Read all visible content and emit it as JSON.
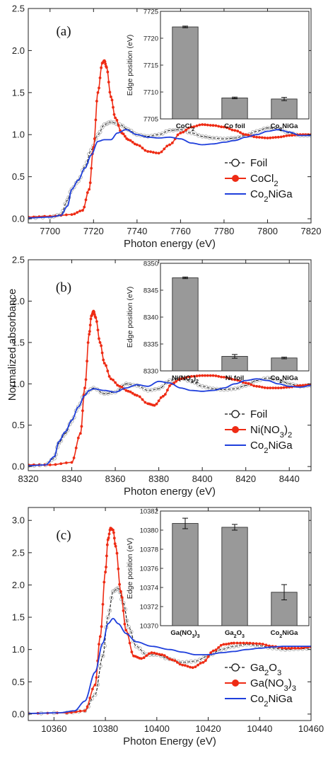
{
  "shared": {
    "ylabel": "Normalized absorbance",
    "colors": {
      "foil": "#111111",
      "foil_markers": "#aaaaaa",
      "reference": "#ee2b14",
      "sample": "#1f3fdc",
      "bar": "#999999"
    }
  },
  "chart_data": [
    {
      "type": "line",
      "panel_label": "(a)",
      "xlabel": "Photon energy (eV)",
      "xlim": [
        7690,
        7820
      ],
      "ylim": [
        -0.05,
        2.5
      ],
      "xticks": [
        "7700",
        "7720",
        "7740",
        "7760",
        "7780",
        "7800",
        "7820"
      ],
      "yticks": [
        "0.0",
        "0.5",
        "1.0",
        "1.5",
        "2.0",
        "2.5"
      ],
      "series": [
        {
          "name": "Foil",
          "style": "open-circle",
          "x": [
            7690,
            7700,
            7705,
            7708,
            7710,
            7713,
            7716,
            7719,
            7722,
            7725,
            7728,
            7732,
            7736,
            7740,
            7745,
            7750,
            7755,
            7760,
            7765,
            7770,
            7775,
            7780,
            7785,
            7790,
            7795,
            7800,
            7805,
            7810,
            7815,
            7820
          ],
          "y": [
            0.01,
            0.02,
            0.05,
            0.22,
            0.35,
            0.45,
            0.62,
            0.82,
            1.0,
            1.12,
            1.15,
            1.12,
            1.06,
            1.0,
            0.98,
            1.0,
            1.05,
            1.06,
            1.02,
            0.98,
            0.96,
            0.95,
            0.96,
            0.99,
            1.04,
            1.08,
            1.07,
            1.02,
            0.99,
            0.99
          ]
        },
        {
          "name": "CoCl2",
          "label_base": "CoCl",
          "label_sub": "2",
          "style": "filled-circle",
          "x": [
            7690,
            7700,
            7710,
            7715,
            7718,
            7720,
            7722,
            7724,
            7725,
            7726,
            7728,
            7730,
            7733,
            7736,
            7740,
            7745,
            7750,
            7755,
            7760,
            7765,
            7770,
            7775,
            7780,
            7785,
            7790,
            7795,
            7800,
            7805,
            7810,
            7815,
            7820
          ],
          "y": [
            0.02,
            0.03,
            0.05,
            0.1,
            0.35,
            0.85,
            1.5,
            1.85,
            1.88,
            1.8,
            1.45,
            1.2,
            1.02,
            0.94,
            0.88,
            0.8,
            0.78,
            0.88,
            1.02,
            1.09,
            1.12,
            1.11,
            1.09,
            1.05,
            1.0,
            0.97,
            0.96,
            0.97,
            0.99,
            1.0,
            1.0
          ]
        },
        {
          "name": "Co2NiGa",
          "label_base": "Co",
          "label_sub": "2",
          "label_rest": "NiGa",
          "style": "line",
          "x": [
            7690,
            7700,
            7705,
            7708,
            7710,
            7713,
            7716,
            7719,
            7722,
            7725,
            7728,
            7731,
            7735,
            7740,
            7745,
            7750,
            7755,
            7760,
            7765,
            7770,
            7775,
            7780,
            7785,
            7790,
            7795,
            7800,
            7805,
            7810,
            7815,
            7820
          ],
          "y": [
            0.01,
            0.02,
            0.04,
            0.15,
            0.35,
            0.46,
            0.6,
            0.76,
            0.92,
            0.94,
            0.94,
            1.02,
            1.06,
            1.0,
            0.97,
            0.96,
            0.97,
            0.95,
            0.9,
            0.88,
            0.89,
            0.91,
            0.93,
            0.97,
            1.0,
            1.04,
            1.06,
            1.03,
            0.99,
            0.99
          ]
        }
      ],
      "legend": {
        "position": "lower-right",
        "entries": [
          "Foil",
          "CoCl2",
          "Co2NiGa"
        ]
      },
      "inset": {
        "type": "bar",
        "ylabel": "Edge position (eV)",
        "ylim": [
          7705,
          7725
        ],
        "yticks": [
          "7705",
          "7710",
          "7715",
          "7720",
          "7725"
        ],
        "categories": [
          {
            "base": "CoCl",
            "sub": "2",
            "rest": ""
          },
          {
            "base": "Co foil",
            "sub": "",
            "rest": ""
          },
          {
            "base": "Co",
            "sub": "2",
            "rest": "NiGa"
          }
        ],
        "values": [
          7722.1,
          7708.9,
          7708.7
        ],
        "errors": [
          0.15,
          0.15,
          0.3
        ]
      }
    },
    {
      "type": "line",
      "panel_label": "(b)",
      "xlabel": "Photon energy (eV)",
      "xlim": [
        8320,
        8450
      ],
      "ylim": [
        -0.05,
        2.5
      ],
      "xticks": [
        "8320",
        "8340",
        "8360",
        "8380",
        "8400",
        "8420",
        "8440"
      ],
      "yticks": [
        "0.0",
        "0.5",
        "1.0",
        "1.5",
        "2.0",
        "2.5"
      ],
      "series": [
        {
          "name": "Foil",
          "style": "open-circle",
          "x": [
            8320,
            8328,
            8332,
            8334,
            8337,
            8340,
            8343,
            8346,
            8350,
            8355,
            8360,
            8365,
            8370,
            8375,
            8380,
            8385,
            8390,
            8395,
            8400,
            8405,
            8410,
            8415,
            8420,
            8425,
            8430,
            8435,
            8440,
            8445,
            8450
          ],
          "y": [
            0.01,
            0.02,
            0.1,
            0.28,
            0.4,
            0.55,
            0.72,
            0.88,
            0.95,
            0.88,
            0.9,
            1.0,
            0.98,
            0.92,
            0.94,
            1.04,
            1.07,
            1.03,
            0.97,
            0.94,
            0.93,
            0.94,
            0.98,
            1.04,
            1.07,
            1.05,
            1.0,
            0.97,
            0.98
          ]
        },
        {
          "name": "Ni(NO3)2",
          "label_base": "Ni(NO",
          "label_sub": "3",
          "label_rest": ")",
          "label_sub2": "2",
          "style": "filled-circle",
          "x": [
            8320,
            8330,
            8340,
            8344,
            8346,
            8348,
            8349,
            8350,
            8351,
            8353,
            8355,
            8358,
            8362,
            8366,
            8370,
            8375,
            8378,
            8382,
            8386,
            8390,
            8395,
            8400,
            8405,
            8410,
            8415,
            8420,
            8425,
            8430,
            8435,
            8440,
            8445,
            8450
          ],
          "y": [
            0.02,
            0.02,
            0.05,
            0.4,
            0.95,
            1.6,
            1.82,
            1.88,
            1.8,
            1.5,
            1.25,
            1.06,
            0.97,
            0.91,
            0.86,
            0.76,
            0.74,
            0.85,
            1.0,
            1.06,
            1.09,
            1.1,
            1.1,
            1.08,
            1.05,
            1.01,
            0.97,
            0.95,
            0.95,
            0.96,
            0.98,
            0.99
          ]
        },
        {
          "name": "Co2NiGa",
          "label_base": "Co",
          "label_sub": "2",
          "label_rest": "NiGa",
          "style": "line",
          "x": [
            8320,
            8328,
            8332,
            8334,
            8337,
            8340,
            8343,
            8346,
            8348,
            8350,
            8355,
            8360,
            8365,
            8370,
            8375,
            8380,
            8385,
            8390,
            8395,
            8400,
            8405,
            8410,
            8415,
            8420,
            8425,
            8430,
            8435,
            8440,
            8445,
            8450
          ],
          "y": [
            0.01,
            0.02,
            0.12,
            0.3,
            0.42,
            0.56,
            0.72,
            0.86,
            0.92,
            0.94,
            0.92,
            0.9,
            0.95,
            0.99,
            0.97,
            1.03,
            1.01,
            0.95,
            0.92,
            0.91,
            0.92,
            0.95,
            1.0,
            1.04,
            1.06,
            1.04,
            1.0,
            0.97,
            0.96,
            0.98
          ]
        }
      ],
      "legend": {
        "position": "lower-right",
        "entries": [
          "Foil",
          "Ni(NO3)2",
          "Co2NiGa"
        ]
      },
      "inset": {
        "type": "bar",
        "ylabel": "Edge position (eV)",
        "ylim": [
          8330,
          8350
        ],
        "yticks": [
          "8330",
          "8335",
          "8340",
          "8345",
          "8350"
        ],
        "categories": [
          {
            "base": "Ni(NO",
            "sub": "3",
            "rest": ")",
            "sub2": "2"
          },
          {
            "base": "Ni foil",
            "sub": "",
            "rest": ""
          },
          {
            "base": "Co",
            "sub": "2",
            "rest": "NiGa"
          }
        ],
        "values": [
          8347.3,
          8332.7,
          8332.4
        ],
        "errors": [
          0.15,
          0.35,
          0.15
        ]
      }
    },
    {
      "type": "line",
      "panel_label": "(c)",
      "xlabel": "Photon Energy (eV)",
      "xlim": [
        10350,
        10460
      ],
      "ylim": [
        -0.1,
        3.2
      ],
      "xticks": [
        "10360",
        "10380",
        "10400",
        "10420",
        "10440",
        "10460"
      ],
      "yticks": [
        "0.0",
        "0.5",
        "1.0",
        "1.5",
        "2.0",
        "2.5",
        "3.0"
      ],
      "series": [
        {
          "name": "Ga2O3",
          "label_base": "Ga",
          "label_sub": "2",
          "label_rest": "O",
          "label_sub2": "3",
          "style": "open-circle",
          "x": [
            10350,
            10365,
            10372,
            10376,
            10379,
            10381,
            10383,
            10385,
            10387,
            10389,
            10392,
            10396,
            10400,
            10405,
            10410,
            10415,
            10420,
            10425,
            10430,
            10435,
            10440,
            10445,
            10450,
            10455,
            10460
          ],
          "y": [
            0.01,
            0.02,
            0.05,
            0.3,
            0.9,
            1.5,
            1.9,
            1.95,
            1.72,
            1.35,
            1.05,
            0.92,
            0.92,
            0.85,
            0.8,
            0.82,
            0.9,
            1.0,
            1.05,
            1.08,
            1.06,
            1.02,
            1.0,
            1.01,
            1.02
          ]
        },
        {
          "name": "Ga(NO3)3",
          "label_base": "Ga(NO",
          "label_sub": "3",
          "label_rest": ")",
          "label_sub2": "3",
          "style": "filled-circle",
          "x": [
            10350,
            10365,
            10372,
            10376,
            10378,
            10380,
            10381,
            10382,
            10383,
            10384,
            10386,
            10388,
            10391,
            10394,
            10398,
            10402,
            10406,
            10410,
            10414,
            10418,
            10422,
            10426,
            10430,
            10435,
            10440,
            10445,
            10450,
            10455,
            10460
          ],
          "y": [
            0.01,
            0.02,
            0.05,
            0.45,
            1.2,
            2.2,
            2.7,
            2.88,
            2.85,
            2.6,
            1.9,
            1.3,
            0.9,
            0.86,
            0.95,
            0.92,
            0.84,
            0.76,
            0.72,
            0.8,
            0.98,
            1.08,
            1.1,
            1.1,
            1.09,
            1.05,
            1.02,
            1.02,
            1.04
          ]
        },
        {
          "name": "Co2NiGa",
          "label_base": "Co",
          "label_sub": "2",
          "label_rest": "NiGa",
          "style": "line",
          "x": [
            10350,
            10362,
            10368,
            10372,
            10376,
            10379,
            10381,
            10383,
            10385,
            10388,
            10392,
            10398,
            10405,
            10410,
            10415,
            10420,
            10425,
            10430,
            10435,
            10440,
            10445,
            10450,
            10455,
            10460
          ],
          "y": [
            0.01,
            0.02,
            0.05,
            0.2,
            0.65,
            1.1,
            1.4,
            1.48,
            1.4,
            1.25,
            1.12,
            1.05,
            1.0,
            0.96,
            0.92,
            0.92,
            0.95,
            0.97,
            1.0,
            1.02,
            1.04,
            1.05,
            1.05,
            1.05
          ]
        }
      ],
      "legend": {
        "position": "lower-right",
        "entries": [
          "Ga2O3",
          "Ga(NO3)3",
          "Co2NiGa"
        ]
      },
      "inset": {
        "type": "bar",
        "ylabel": "Edge position (eV)",
        "ylim": [
          10370,
          10382
        ],
        "yticks": [
          "10370",
          "10372",
          "10374",
          "10376",
          "10378",
          "10380",
          "10382"
        ],
        "categories": [
          {
            "base": "Ga(NO",
            "sub": "3",
            "rest": ")",
            "sub2": "3"
          },
          {
            "base": "Ga",
            "sub": "2",
            "rest": "O",
            "sub2": "3"
          },
          {
            "base": "Co",
            "sub": "2",
            "rest": "NiGa"
          }
        ],
        "values": [
          10380.7,
          10380.3,
          10373.5
        ],
        "errors": [
          0.55,
          0.3,
          0.8
        ]
      }
    }
  ]
}
